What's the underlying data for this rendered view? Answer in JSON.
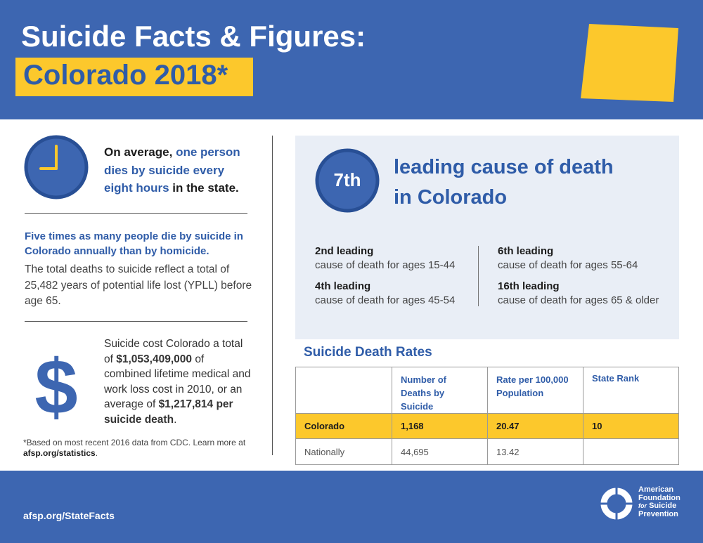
{
  "header": {
    "title": "Suicide Facts & Figures:",
    "subtitle": "Colorado 2018*"
  },
  "summary": {
    "line1": [
      "On average,",
      "one person"
    ],
    "line2": "dies by suicide every",
    "line3": [
      "eight hours",
      "in the state."
    ]
  },
  "homicide": {
    "headline": "Five times as many people die by suicide in Colorado annually than by homicide.",
    "text": "The total deaths to suicide reflect a total of 25,482 years of potential life lost (YPLL) before age 65."
  },
  "cost": {
    "parts": [
      "Suicide cost Colorado a total of",
      "$1,053,409,000",
      "of combined lifetime medical and work loss cost in 2010, or an average of",
      "$1,217,814 per suicide death",
      "."
    ]
  },
  "footnote": {
    "text": "*Based on most recent 2016 data from CDC. Learn more at",
    "link": "afsp.org/statistics",
    "end": "."
  },
  "rank": {
    "badge": "7th",
    "title": [
      "leading cause of death",
      "in Colorado"
    ],
    "items": [
      {
        "rank": "2nd leading",
        "text": "cause of death for ages 15-44"
      },
      {
        "rank": "4th leading",
        "text": "cause of death for ages 45-54"
      },
      {
        "rank": "6th leading",
        "text": "cause of death for ages 55-64"
      },
      {
        "rank": "16th leading",
        "text": "cause of death for ages 65 & older"
      }
    ]
  },
  "table": {
    "title": "Suicide Death Rates",
    "columns": [
      "Number of Deaths by Suicide",
      "Rate per 100,000 Population",
      "State Rank"
    ],
    "rows": [
      [
        "Colorado",
        "1,168",
        "20.47",
        "10"
      ],
      [
        "Nationally",
        "44,695",
        "13.42",
        null
      ]
    ]
  },
  "footer": {
    "url": "afsp.org/StateFacts",
    "logo": [
      "American",
      "Foundation",
      "for",
      "Suicide",
      "Prevention"
    ]
  }
}
